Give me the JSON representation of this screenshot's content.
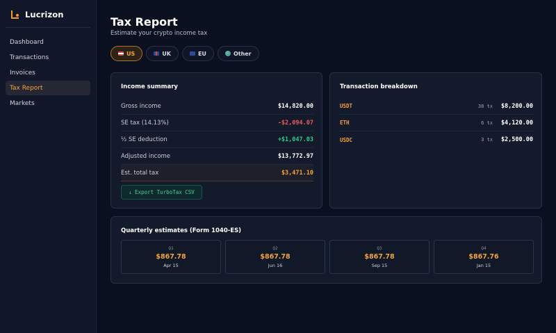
{
  "app": {
    "name": "Lucrizon"
  },
  "nav": [
    {
      "label": "Dashboard",
      "name": "sidebar-item-dashboard",
      "active": false
    },
    {
      "label": "Transactions",
      "name": "sidebar-item-transactions",
      "active": false
    },
    {
      "label": "Invoices",
      "name": "sidebar-item-invoices",
      "active": false
    },
    {
      "label": "Tax Report",
      "name": "sidebar-item-tax-report",
      "active": true
    },
    {
      "label": "Markets",
      "name": "sidebar-item-markets",
      "active": false
    }
  ],
  "header": {
    "title": "Tax Report",
    "subtitle": "Estimate your crypto income tax"
  },
  "tabs": [
    {
      "label": "US",
      "icon": "us-flag-icon",
      "active": true
    },
    {
      "label": "UK",
      "icon": "uk-flag-icon",
      "active": false
    },
    {
      "label": "EU",
      "icon": "eu-flag-icon",
      "active": false
    },
    {
      "label": "Other",
      "icon": "globe-icon",
      "active": false
    }
  ],
  "income_summary": {
    "title": "Income summary",
    "rows": [
      {
        "label": "Gross income",
        "value": "$14,820.00",
        "tone": ""
      },
      {
        "label": "SE tax (14.13%)",
        "value": "-$2,094.07",
        "tone": "neg"
      },
      {
        "label": "½ SE deduction",
        "value": "+$1,047.03",
        "tone": "pos"
      },
      {
        "label": "Adjusted income",
        "value": "$13,772.97",
        "tone": ""
      },
      {
        "label": "Est. total tax",
        "value": "$3,471.10",
        "tone": "total"
      }
    ],
    "export_label": "↓ Export TurboTax CSV"
  },
  "breakdown": {
    "title": "Transaction breakdown",
    "rows": [
      {
        "asset": "USDT",
        "count": "38 tx",
        "amount": "$8,200.00"
      },
      {
        "asset": "ETH",
        "count": "6 tx",
        "amount": "$4,120.00"
      },
      {
        "asset": "USDC",
        "count": "3 tx",
        "amount": "$2,500.00"
      }
    ]
  },
  "quarterly": {
    "title": "Quarterly estimates (Form 1040-ES)",
    "items": [
      {
        "label": "Q1",
        "amount": "$867.78",
        "due": "Apr 15"
      },
      {
        "label": "Q2",
        "amount": "$867.78",
        "due": "Jun 16"
      },
      {
        "label": "Q3",
        "amount": "$867.78",
        "due": "Sep 15"
      },
      {
        "label": "Q4",
        "amount": "$867.76",
        "due": "Jan 15"
      }
    ]
  },
  "colors": {
    "accent": "#f5a33a",
    "negative": "#ef5b55",
    "positive": "#2fc98e",
    "background": "#0b1020"
  }
}
